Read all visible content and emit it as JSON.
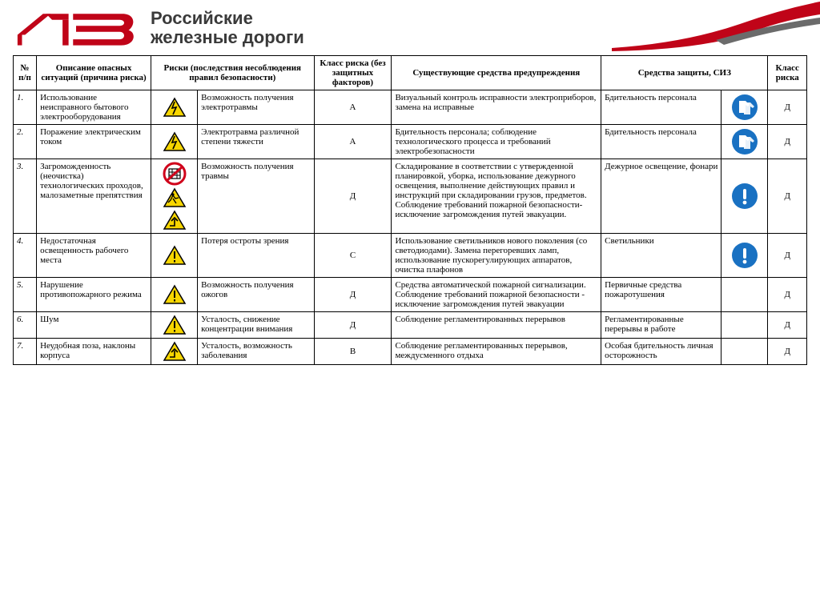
{
  "brand": {
    "logo_text": "РЖД",
    "org_line1": "Российские",
    "org_line2": "железные дороги",
    "logo_color": "#c00418",
    "title_color": "#3a3a3a"
  },
  "table": {
    "headers": {
      "num": "№ п/п",
      "desc": "Описание опасных ситуаций (причина риска)",
      "risks": "Риски (последствия несоблюдения правил безопасности)",
      "class1": "Класс риска (без защитных факторов)",
      "prevention": "Существующие средства предупреждения",
      "protection": "Средства защиты, СИЗ",
      "class2": "Класс риска"
    },
    "rows": [
      {
        "n": "1.",
        "desc": "Использование неисправного бытового электрооборудования",
        "hazard_icons": [
          "electric"
        ],
        "risk": "Возможность получения электротравмы",
        "class1": "А",
        "prevention": "Визуальный контроль исправности электроприборов, замена на исправные",
        "protection": "Бдительность персонала",
        "prot_icons": [
          "gloves"
        ],
        "class2": "Д"
      },
      {
        "n": "2.",
        "desc": "Поражение электрическим током",
        "hazard_icons": [
          "electric"
        ],
        "risk": "Электротравма различной степени тяжести",
        "class1": "А",
        "prevention": "Бдительность персонала; соблюдение технологического процесса и требований электробезопасности",
        "protection": "Бдительность персонала",
        "prot_icons": [
          "gloves"
        ],
        "class2": "Д"
      },
      {
        "n": "3.",
        "desc": "Загроможденность (неочистка) технологических проходов, малозаметные препятствия",
        "hazard_icons": [
          "prohibit",
          "trip",
          "turn"
        ],
        "risk": "Возможность получения травмы",
        "class1": "Д",
        "prevention": "Складирование в соответствии с утвержденной планировкой, уборка, использование дежурного освещения, выполнение действующих правил и инструкций при складировании грузов, предметов. Соблюдение требований пожарной безопасности- исключение загромождения путей эвакуации.",
        "protection": "Дежурное освещение, фонари",
        "prot_icons": [
          "info"
        ],
        "class2": "Д"
      },
      {
        "n": "4.",
        "desc": "Недостаточная освещенность рабочего места",
        "hazard_icons": [
          "warn"
        ],
        "risk": "Потеря остроты зрения",
        "class1": "С",
        "prevention": "Использование светильников нового поколения (со светодиодами). Замена перегоревших ламп, использование пускорегулирующих аппаратов, очистка плафонов",
        "protection": "Светильники",
        "prot_icons": [
          "info"
        ],
        "class2": "Д"
      },
      {
        "n": "5.",
        "desc": "Нарушение противопожарного режима",
        "hazard_icons": [
          "warn"
        ],
        "risk": "Возможность получения ожогов",
        "class1": "Д",
        "prevention": "Средства автоматической пожарной сигнализации. Соблюдение требований пожарной безопасности - исключение загромождения путей эвакуации",
        "protection": "Первичные средства пожаротушения",
        "prot_icons": [],
        "class2": "Д"
      },
      {
        "n": "6.",
        "desc": "Шум",
        "hazard_icons": [
          "warn"
        ],
        "risk": "Усталость, снижение концентрации внимания",
        "class1": "Д",
        "prevention": "Соблюдение регламентированных перерывов",
        "protection": "Регламентированные перерывы в работе",
        "prot_icons": [],
        "class2": "Д"
      },
      {
        "n": "7.",
        "desc": "Неудобная поза, наклоны корпуса",
        "hazard_icons": [
          "turn"
        ],
        "risk": "Усталость, возможность заболевания",
        "class1": "В",
        "prevention": "Соблюдение регламентированных перерывов, междусменного отдыха",
        "protection": "Особая бдительность личная осторожность",
        "prot_icons": [],
        "class2": "Д"
      }
    ]
  },
  "colors": {
    "warn_fill": "#f7d600",
    "warn_stroke": "#000000",
    "mand_fill": "#1971c2",
    "mand_stroke": "#0d4a8a",
    "prohibit_stroke": "#d0021b",
    "white": "#ffffff"
  }
}
